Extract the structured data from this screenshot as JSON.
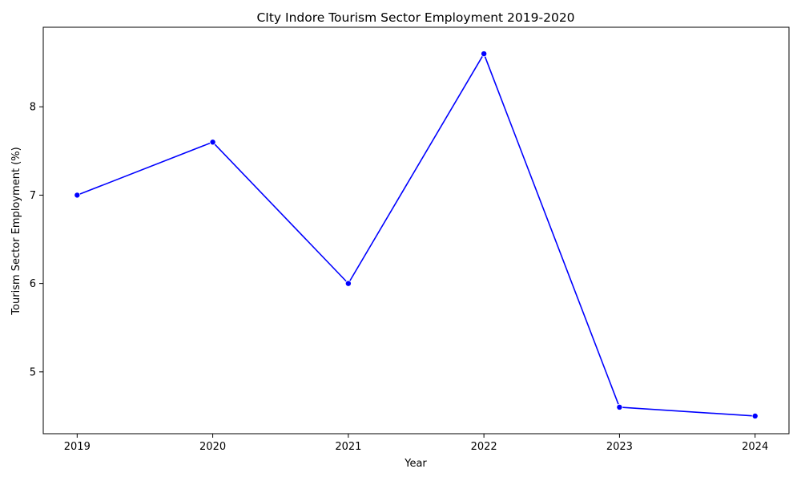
{
  "chart_data": {
    "type": "line",
    "title": "CIty Indore Tourism Sector Employment 2019-2020",
    "xlabel": "Year",
    "ylabel": "Tourism Sector Employment (%)",
    "x": [
      2019,
      2020,
      2021,
      2022,
      2023,
      2024
    ],
    "series": [
      {
        "values": [
          7.0,
          7.6,
          6.0,
          8.6,
          4.6,
          4.5
        ]
      }
    ],
    "x_ticks": [
      "2019",
      "2020",
      "2021",
      "2022",
      "2023",
      "2024"
    ],
    "y_ticks": [
      "5",
      "6",
      "7",
      "8"
    ],
    "xlim": [
      2018.75,
      2024.25
    ],
    "ylim": [
      4.3,
      8.9
    ],
    "grid": false,
    "legend": "none",
    "line_color": "#0000ff",
    "marker": "circle"
  }
}
